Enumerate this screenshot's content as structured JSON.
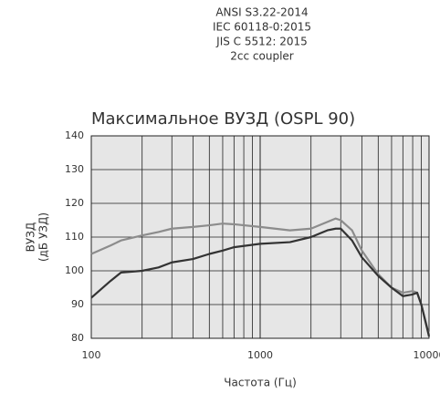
{
  "chart_data": {
    "type": "line",
    "header": [
      "ANSI S3.22-2014",
      "IEC 60118-0:2015",
      "JIS C 5512: 2015",
      "2cc coupler"
    ],
    "title": "Максимальное ВУЗД (OSPL 90)",
    "ylabel": [
      "ВУЗД",
      "(дБ УЗД)"
    ],
    "xlabel": "Частота (Гц)",
    "x": [
      100,
      130,
      150,
      200,
      250,
      300,
      400,
      500,
      600,
      700,
      1000,
      1500,
      2000,
      2500,
      2800,
      3000,
      3500,
      4000,
      5000,
      6000,
      7000,
      8000,
      8500,
      9000,
      10000
    ],
    "series": [
      {
        "name": "light",
        "color": "#8c8c8c",
        "values": [
          105,
          107.5,
          109,
          110.5,
          111.5,
          112.5,
          113,
          113.5,
          114,
          113.8,
          113,
          112,
          112.5,
          114.5,
          115.5,
          115,
          112,
          106,
          99,
          95,
          93.5,
          94,
          93.5,
          90,
          81
        ]
      },
      {
        "name": "dark",
        "color": "#333333",
        "values": [
          92,
          97,
          99.5,
          100,
          101,
          102.5,
          103.5,
          105,
          106,
          107,
          108,
          108.5,
          110,
          112,
          112.5,
          112.5,
          109,
          104,
          98.5,
          95,
          92.5,
          93,
          93.5,
          90,
          80.5
        ]
      }
    ],
    "xscale": "log",
    "xlim": [
      100,
      10000
    ],
    "xticks": [
      100,
      1000,
      10000
    ],
    "ylim": [
      80,
      140
    ],
    "yticks": [
      80,
      90,
      100,
      110,
      120,
      130,
      140
    ],
    "grid": true,
    "plot_background": "#e6e6e6"
  }
}
